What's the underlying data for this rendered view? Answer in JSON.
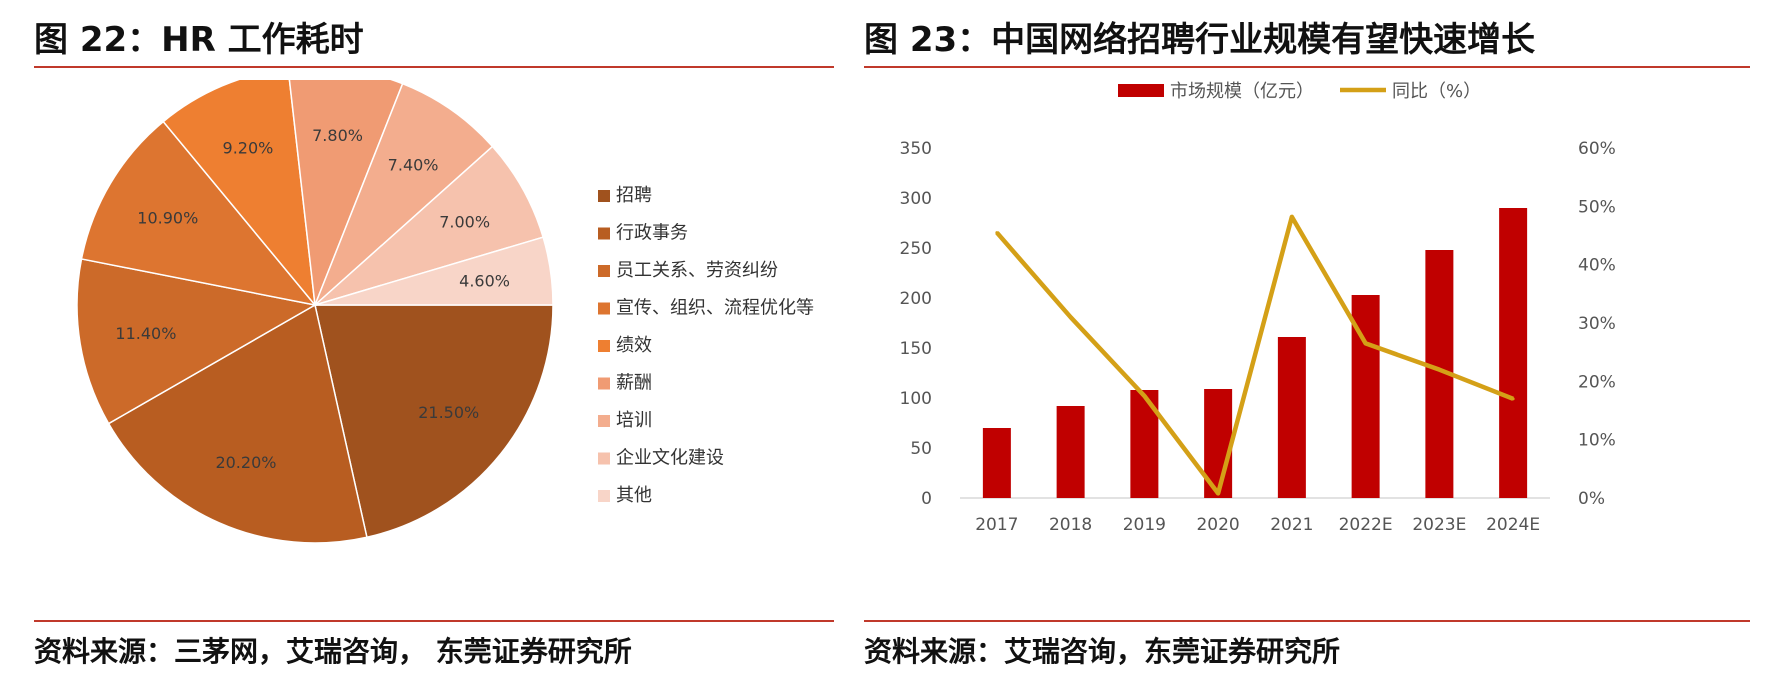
{
  "left": {
    "title": "图 22：HR 工作耗时",
    "source": "资料来源：三茅网，艾瑞咨询， 东莞证券研究所",
    "chart_data": {
      "type": "pie",
      "legend_position": "right",
      "slices": [
        {
          "label": "招聘",
          "value": 21.5,
          "display": "21.50%",
          "color": "#a0521e"
        },
        {
          "label": "行政事务",
          "value": 20.2,
          "display": "20.20%",
          "color": "#b85d21"
        },
        {
          "label": "员工关系、劳资纠纷",
          "value": 11.4,
          "display": "11.40%",
          "color": "#cc6a29"
        },
        {
          "label": "宣传、组织、流程优化等",
          "value": 10.9,
          "display": "10.90%",
          "color": "#dd7530"
        },
        {
          "label": "绩效",
          "value": 9.2,
          "display": "9.20%",
          "color": "#ee7f31"
        },
        {
          "label": "薪酬",
          "value": 7.8,
          "display": "7.80%",
          "color": "#f09b73"
        },
        {
          "label": "培训",
          "value": 7.4,
          "display": "7.40%",
          "color": "#f3ad8e"
        },
        {
          "label": "企业文化建设",
          "value": 7.0,
          "display": "7.00%",
          "color": "#f6c2ad"
        },
        {
          "label": "其他",
          "value": 4.6,
          "display": "4.60%",
          "color": "#f8d5c8"
        }
      ]
    }
  },
  "right": {
    "title": "图 23：中国网络招聘行业规模有望快速增长",
    "source": "资料来源：艾瑞咨询，东莞证券研究所",
    "chart_data": {
      "type": "bar",
      "categories": [
        "2017",
        "2018",
        "2019",
        "2020",
        "2021",
        "2022E",
        "2023E",
        "2024E"
      ],
      "series": [
        {
          "name": "市场规模（亿元）",
          "type": "bar",
          "axis": "left",
          "color": "#c00000",
          "values": [
            70,
            92,
            108,
            109,
            161,
            203,
            248,
            290
          ]
        },
        {
          "name": "同比（%）",
          "type": "line",
          "axis": "right",
          "color": "#d4a017",
          "values": [
            45.5,
            31.0,
            17.5,
            0.8,
            48.2,
            26.5,
            22.0,
            17.0
          ]
        }
      ],
      "y_left": {
        "min": 0,
        "max": 350,
        "ticks": [
          "0",
          "50",
          "100",
          "150",
          "200",
          "250",
          "300",
          "350"
        ]
      },
      "y_right": {
        "min": 0,
        "max": 60,
        "ticks": [
          "0%",
          "10%",
          "20%",
          "30%",
          "40%",
          "50%",
          "60%"
        ]
      },
      "legend_position": "top",
      "grid": false
    }
  }
}
